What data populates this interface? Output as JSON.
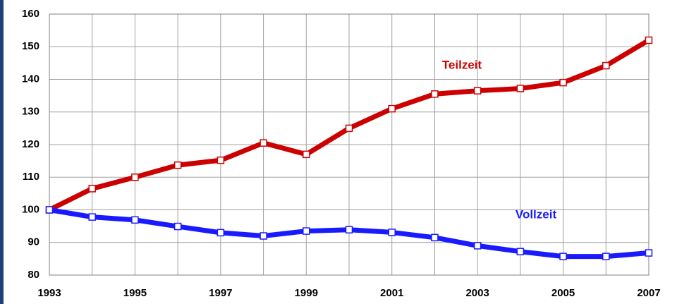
{
  "chart_data": {
    "type": "line",
    "x": [
      1993,
      1994,
      1995,
      1996,
      1997,
      1998,
      1999,
      2000,
      2001,
      2002,
      2003,
      2004,
      2005,
      2006,
      2007
    ],
    "series": [
      {
        "name": "Teilzeit",
        "color": "#cc0000",
        "values": [
          100,
          106.5,
          110,
          113.7,
          115.2,
          120.5,
          117,
          125,
          131,
          135.5,
          136.5,
          137.2,
          139,
          144.2,
          152
        ]
      },
      {
        "name": "Vollzeit",
        "color": "#1a1aff",
        "values": [
          100,
          97.8,
          96.9,
          94.9,
          93,
          92,
          93.5,
          93.9,
          93.1,
          91.5,
          89,
          87.2,
          85.7,
          85.7,
          86.8
        ]
      }
    ],
    "xlim": [
      1993,
      2007
    ],
    "xticks": [
      1993,
      1995,
      1997,
      1999,
      2001,
      2003,
      2005,
      2007
    ],
    "xminor_ticks": [
      1994,
      1996,
      1998,
      2000,
      2002,
      2004,
      2006
    ],
    "ylim": [
      80,
      160
    ],
    "yticks": [
      80,
      90,
      100,
      110,
      120,
      130,
      140,
      150,
      160
    ],
    "grid": true
  }
}
